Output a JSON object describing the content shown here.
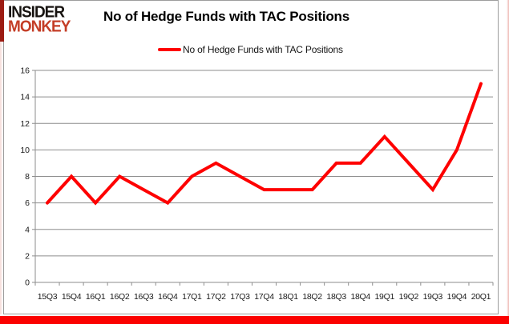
{
  "logo": {
    "line1": "INSIDER",
    "line2": "MONKEY"
  },
  "colors": {
    "line": "#fe0000",
    "grid": "#8e8e8e",
    "axis": "#8e8e8e",
    "tick_label": "#1a1a1a",
    "title": "#000000",
    "logo_black": "#171310",
    "logo_red": "#c43e27",
    "accent_bar": "#9c1b12",
    "bottom_bar": "#fb0100"
  },
  "chart_data": {
    "type": "line",
    "title": "No of Hedge Funds with TAC Positions",
    "categories": [
      "15Q3",
      "15Q4",
      "16Q1",
      "16Q2",
      "16Q3",
      "16Q4",
      "17Q1",
      "17Q2",
      "17Q3",
      "17Q4",
      "18Q1",
      "18Q2",
      "18Q3",
      "18Q4",
      "19Q1",
      "19Q2",
      "19Q3",
      "19Q4",
      "20Q1"
    ],
    "series": [
      {
        "name": "No of Hedge Funds with TAC Positions",
        "values": [
          6,
          8,
          6,
          8,
          7,
          6,
          8,
          9,
          8,
          7,
          7,
          7,
          9,
          9,
          11,
          9,
          7,
          10,
          15
        ]
      }
    ],
    "xlabel": "",
    "ylabel": "",
    "ylim": [
      0,
      16
    ],
    "ytick_step": 2,
    "grid": true,
    "legend_position": "top"
  }
}
